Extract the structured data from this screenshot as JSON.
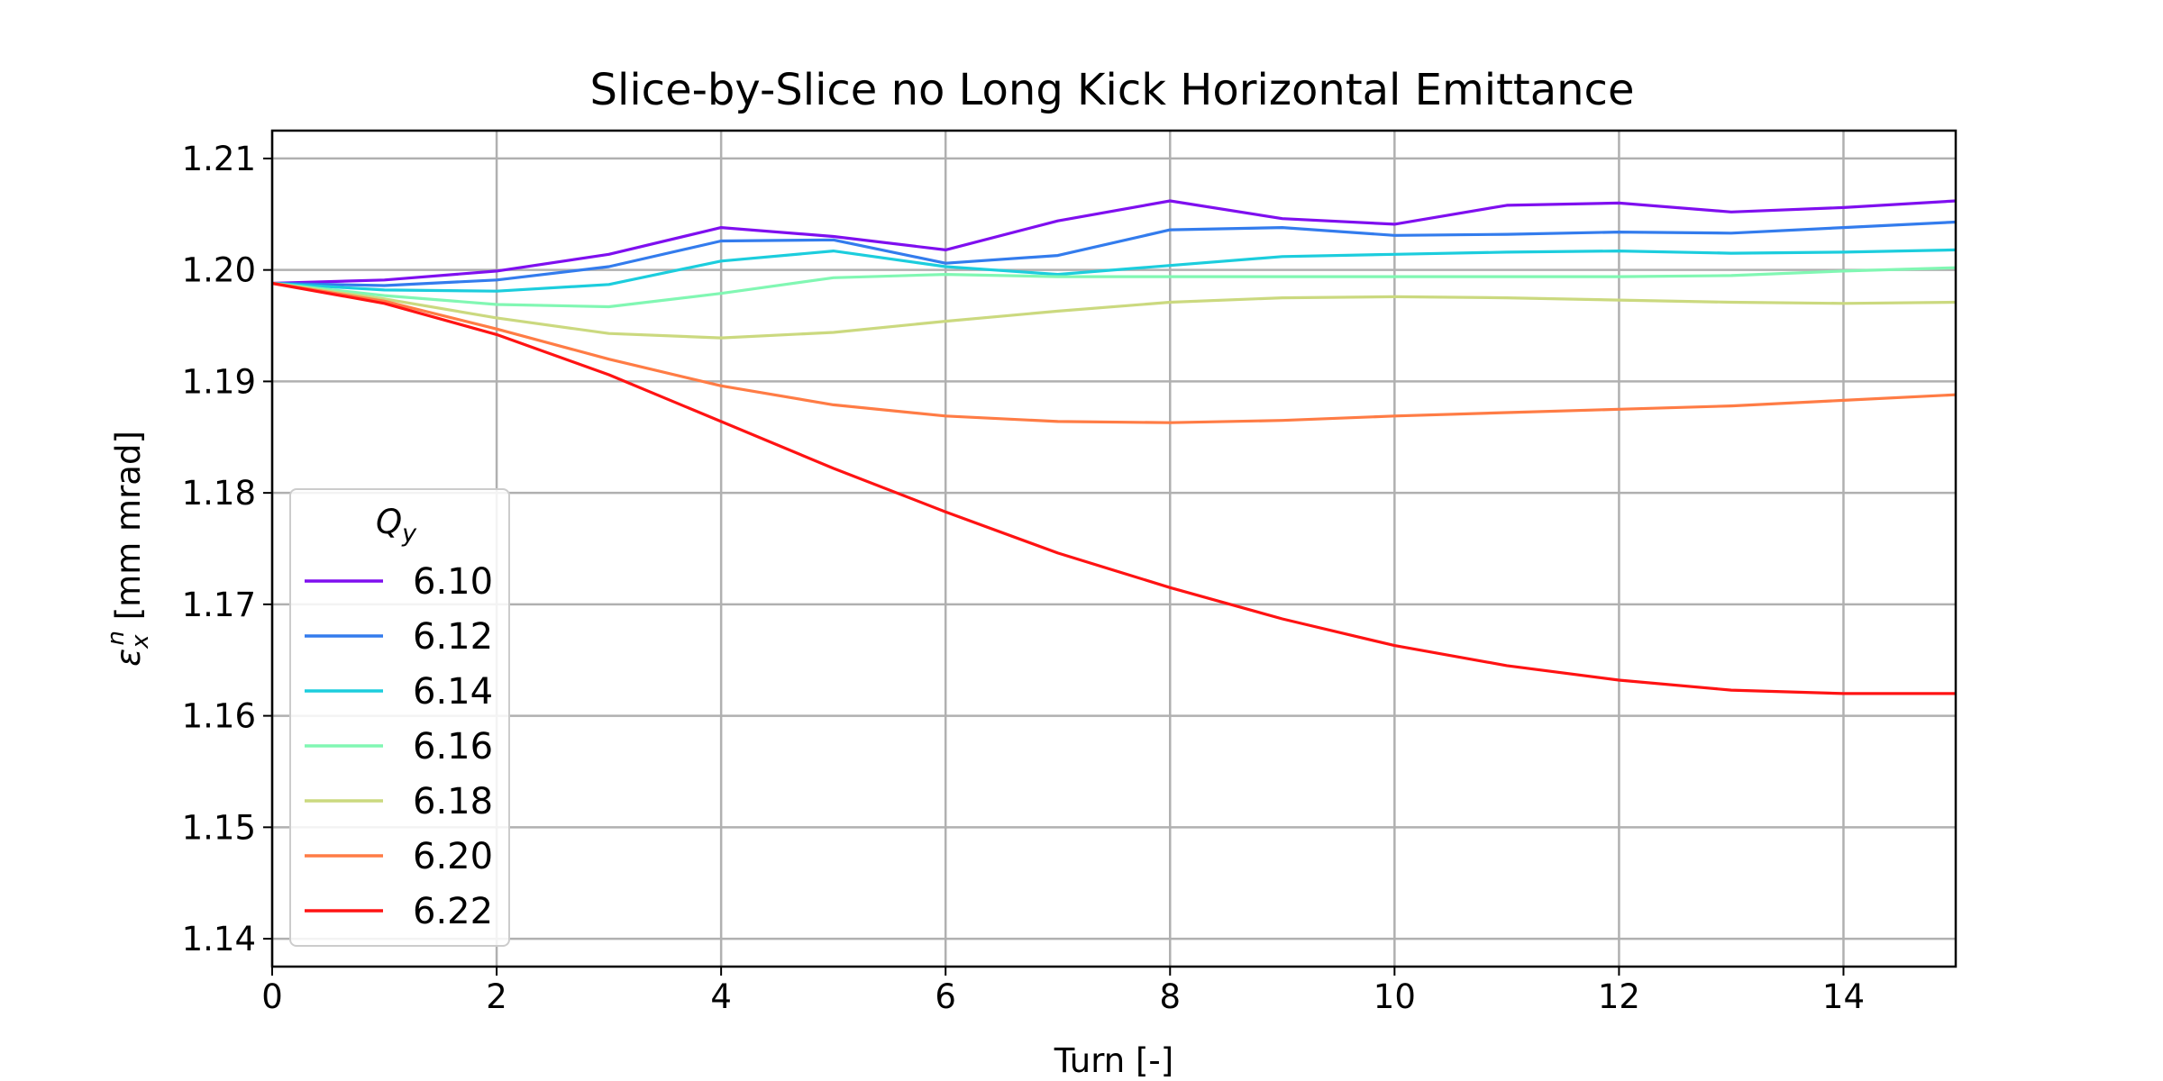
{
  "chart_data": {
    "type": "line",
    "title": "Slice-by-Slice no Long Kick Horizontal Emittance",
    "xlabel": "Turn [-]",
    "ylabel_symbol": "ε",
    "ylabel_sub": "x",
    "ylabel_sup": "n",
    "ylabel_unit": " [mm mrad]",
    "xlim": [
      0,
      15
    ],
    "ylim": [
      1.1375,
      1.2125
    ],
    "xticks": [
      0,
      2,
      4,
      6,
      8,
      10,
      12,
      14
    ],
    "yticks": [
      1.14,
      1.15,
      1.16,
      1.17,
      1.18,
      1.19,
      1.2,
      1.21
    ],
    "ytick_labels": [
      "1.14",
      "1.15",
      "1.16",
      "1.17",
      "1.18",
      "1.19",
      "1.20",
      "1.21"
    ],
    "grid": true,
    "legend_position": "lower-left",
    "legend_title_symbol": "Q",
    "legend_title_sub": "y",
    "x": [
      0,
      1,
      2,
      3,
      4,
      5,
      6,
      7,
      8,
      9,
      10,
      11,
      12,
      13,
      14,
      15
    ],
    "series": [
      {
        "name": "6.10",
        "color": "#7f0fef",
        "values": [
          1.1988,
          1.1991,
          1.1999,
          1.2014,
          1.2038,
          1.203,
          1.2018,
          1.2044,
          1.2062,
          1.2046,
          1.2041,
          1.2058,
          1.206,
          1.2052,
          1.2056,
          1.2062
        ]
      },
      {
        "name": "6.12",
        "color": "#337ced",
        "values": [
          1.1988,
          1.1986,
          1.1991,
          1.2003,
          1.2026,
          1.2027,
          1.2006,
          1.2013,
          1.2036,
          1.2038,
          1.2031,
          1.2032,
          1.2034,
          1.2033,
          1.2038,
          1.2043
        ]
      },
      {
        "name": "6.14",
        "color": "#1ccddd",
        "values": [
          1.1988,
          1.1982,
          1.1981,
          1.1987,
          1.2008,
          1.2017,
          1.2003,
          1.1996,
          1.2004,
          1.2012,
          1.2014,
          1.2016,
          1.2017,
          1.2015,
          1.2016,
          1.2018
        ]
      },
      {
        "name": "6.16",
        "color": "#81f7b3",
        "values": [
          1.1988,
          1.1977,
          1.1969,
          1.1967,
          1.1979,
          1.1993,
          1.1996,
          1.1994,
          1.1994,
          1.1994,
          1.1994,
          1.1994,
          1.1994,
          1.1995,
          1.1999,
          1.2002
        ]
      },
      {
        "name": "6.18",
        "color": "#cbd97f",
        "values": [
          1.1988,
          1.1974,
          1.1957,
          1.1943,
          1.1939,
          1.1944,
          1.1954,
          1.1963,
          1.1971,
          1.1975,
          1.1976,
          1.1975,
          1.1973,
          1.1971,
          1.197,
          1.1971
        ]
      },
      {
        "name": "6.20",
        "color": "#ff7c45",
        "values": [
          1.1988,
          1.1972,
          1.1947,
          1.192,
          1.1896,
          1.1879,
          1.1869,
          1.1864,
          1.1863,
          1.1865,
          1.1869,
          1.1872,
          1.1875,
          1.1878,
          1.1883,
          1.1888
        ]
      },
      {
        "name": "6.22",
        "color": "#ff1313",
        "values": [
          1.1988,
          1.197,
          1.1942,
          1.1906,
          1.1864,
          1.1822,
          1.1783,
          1.1746,
          1.1715,
          1.1687,
          1.1663,
          1.1645,
          1.1632,
          1.1623,
          1.162,
          1.162
        ]
      }
    ]
  }
}
